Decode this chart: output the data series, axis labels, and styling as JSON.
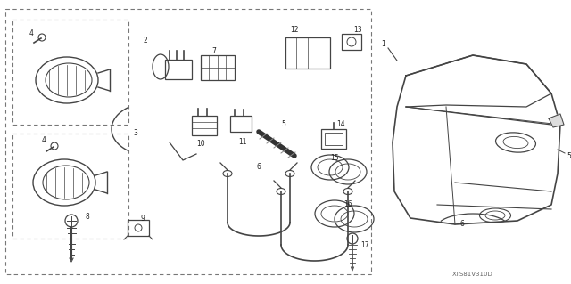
{
  "background_color": "#ffffff",
  "diagram_code": "XTS81V310D",
  "fig_width": 6.4,
  "fig_height": 3.19,
  "dpi": 100,
  "line_color": "#444444",
  "text_color": "#222222",
  "label_fontsize": 5.5
}
